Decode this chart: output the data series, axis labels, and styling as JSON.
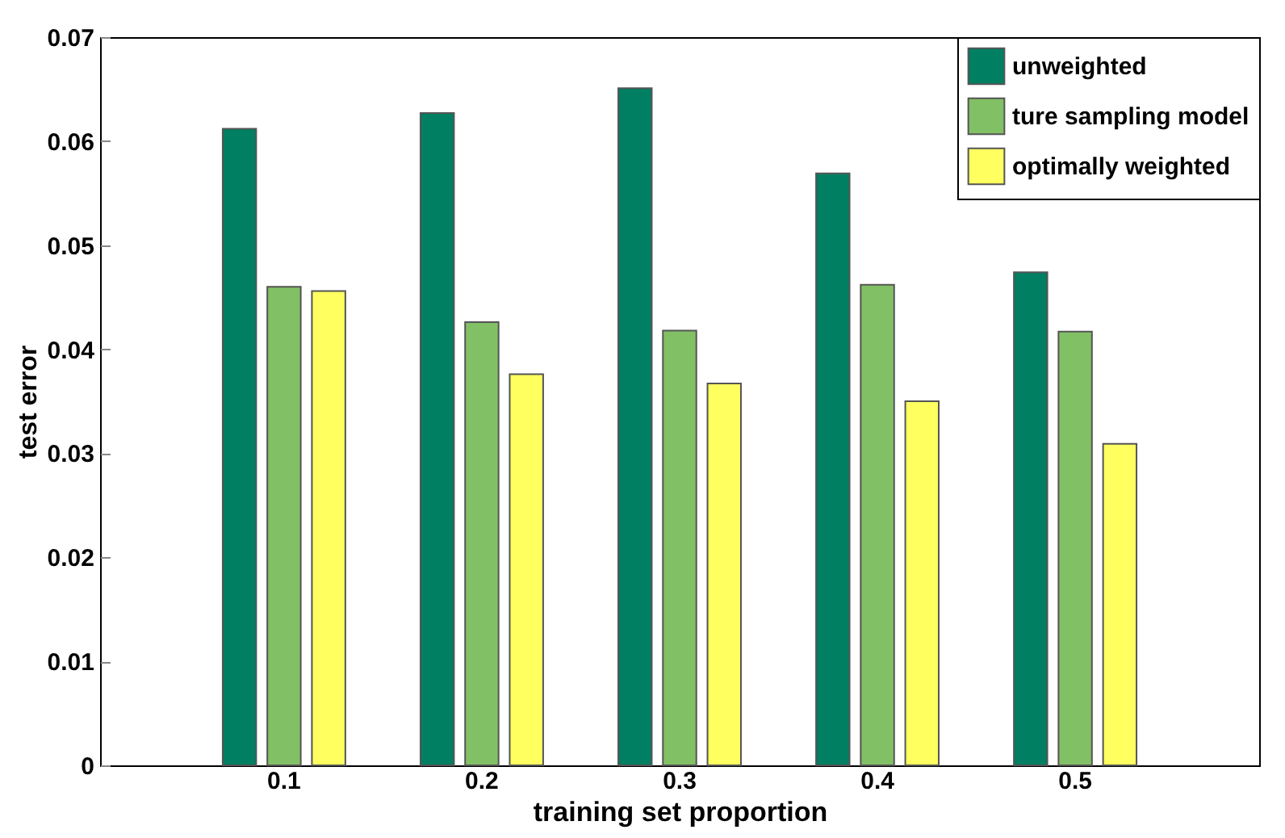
{
  "chart_data": {
    "type": "bar",
    "xlabel": "training set proportion",
    "ylabel": "test error",
    "categories": [
      "0.1",
      "0.2",
      "0.3",
      "0.4",
      "0.5"
    ],
    "series": [
      {
        "name": "unweighted",
        "color": "#007f62",
        "values": [
          0.0612,
          0.0627,
          0.0651,
          0.0569,
          0.0474
        ]
      },
      {
        "name": "ture sampling model",
        "color": "#82c065",
        "values": [
          0.046,
          0.0426,
          0.0418,
          0.0462,
          0.0417
        ]
      },
      {
        "name": "optimally weighted",
        "color": "#ffff60",
        "values": [
          0.0456,
          0.0376,
          0.0367,
          0.035,
          0.0309
        ]
      }
    ],
    "ylim": [
      0,
      0.07
    ],
    "yticks": [
      0,
      0.01,
      0.02,
      0.03,
      0.04,
      0.05,
      0.06,
      0.07
    ],
    "grid": false,
    "legend": "top right"
  }
}
